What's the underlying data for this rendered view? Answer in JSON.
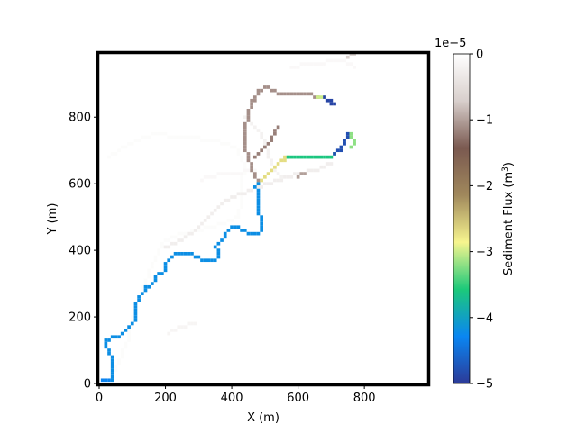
{
  "chart_data": {
    "type": "heatmap",
    "title": "",
    "xlabel": "X (m)",
    "ylabel": "Y (m)",
    "xlim": [
      0,
      990
    ],
    "ylim": [
      0,
      990
    ],
    "xticks": [
      0,
      200,
      400,
      600,
      800
    ],
    "yticks": [
      0,
      200,
      400,
      600,
      800
    ],
    "grid": false,
    "colorbar": {
      "label": "Sediment Flux ($m^3$)",
      "label_text": "Sediment Flux (m",
      "label_sup": "3",
      "label_close": ")",
      "scale_text": "1e−5",
      "vmin": -5,
      "vmax": 0,
      "ticks": [
        0,
        -1,
        -2,
        -3,
        -4,
        -5
      ],
      "tick_labels": [
        "0",
        "−1",
        "−2",
        "−3",
        "−4",
        "−5"
      ],
      "colormap": "terrain_r",
      "stops": [
        "#2c3a98",
        "#0a86f2",
        "#1cc97a",
        "#f7f58e",
        "#a0885c",
        "#7a5950",
        "#d8cfcc",
        "#ffffff"
      ]
    },
    "series": [
      {
        "value": -0.05,
        "points": [
          [
            30,
            680
          ],
          [
            60,
            700
          ],
          [
            100,
            720
          ],
          [
            140,
            740
          ],
          [
            170,
            750
          ],
          [
            200,
            745
          ],
          [
            250,
            740
          ],
          [
            300,
            735
          ],
          [
            340,
            730
          ],
          [
            380,
            720
          ],
          [
            420,
            700
          ],
          [
            440,
            650
          ],
          [
            430,
            600
          ],
          [
            430,
            550
          ],
          [
            420,
            500
          ],
          [
            380,
            480
          ],
          [
            340,
            470
          ],
          [
            300,
            460
          ],
          [
            260,
            450
          ],
          [
            220,
            440
          ],
          [
            190,
            420
          ],
          [
            170,
            380
          ],
          [
            150,
            330
          ],
          [
            130,
            280
          ],
          [
            110,
            230
          ],
          [
            100,
            190
          ],
          [
            90,
            140
          ],
          [
            70,
            90
          ],
          [
            50,
            50
          ],
          [
            40,
            20
          ]
        ]
      },
      {
        "value": -0.1,
        "points": [
          [
            580,
            950
          ],
          [
            630,
            960
          ],
          [
            690,
            965
          ],
          [
            740,
            965
          ],
          [
            760,
            960
          ],
          [
            770,
            950
          ]
        ]
      },
      {
        "value": -0.2,
        "points": [
          [
            550,
            620
          ],
          [
            530,
            640
          ],
          [
            520,
            660
          ],
          [
            510,
            690
          ],
          [
            500,
            720
          ],
          [
            490,
            740
          ],
          [
            480,
            760
          ],
          [
            460,
            780
          ],
          [
            440,
            800
          ]
        ]
      },
      {
        "value": -0.25,
        "points": [
          [
            200,
            410
          ],
          [
            230,
            420
          ],
          [
            260,
            440
          ],
          [
            290,
            460
          ],
          [
            310,
            480
          ],
          [
            330,
            500
          ],
          [
            350,
            520
          ],
          [
            370,
            540
          ],
          [
            400,
            560
          ],
          [
            430,
            570
          ],
          [
            460,
            580
          ],
          [
            480,
            590
          ],
          [
            510,
            600
          ],
          [
            540,
            610
          ],
          [
            570,
            620
          ],
          [
            610,
            630
          ],
          [
            650,
            640
          ],
          [
            680,
            650
          ],
          [
            700,
            660
          ]
        ]
      },
      {
        "value": -0.1,
        "points": [
          [
            310,
            610
          ],
          [
            330,
            620
          ],
          [
            360,
            625
          ],
          [
            400,
            630
          ],
          [
            440,
            635
          ],
          [
            470,
            638
          ]
        ]
      },
      {
        "value": -0.15,
        "points": [
          [
            210,
            150
          ],
          [
            230,
            160
          ],
          [
            250,
            170
          ],
          [
            270,
            175
          ],
          [
            290,
            180
          ]
        ]
      },
      {
        "value": -0.7,
        "points": [
          [
            750,
            980
          ],
          [
            760,
            985
          ],
          [
            770,
            990
          ]
        ]
      },
      {
        "value": -1.0,
        "points": [
          [
            600,
            620
          ],
          [
            610,
            625
          ],
          [
            620,
            630
          ]
        ]
      },
      {
        "value": -1.1,
        "points": [
          [
            480,
            600
          ],
          [
            470,
            615
          ],
          [
            465,
            630
          ],
          [
            460,
            650
          ],
          [
            450,
            670
          ],
          [
            445,
            690
          ],
          [
            440,
            710
          ],
          [
            440,
            730
          ],
          [
            440,
            750
          ],
          [
            440,
            770
          ],
          [
            445,
            790
          ],
          [
            450,
            810
          ],
          [
            455,
            830
          ],
          [
            460,
            845
          ],
          [
            470,
            860
          ],
          [
            480,
            875
          ],
          [
            490,
            880
          ],
          [
            500,
            885
          ],
          [
            510,
            885
          ],
          [
            520,
            880
          ],
          [
            530,
            875
          ],
          [
            540,
            870
          ],
          [
            560,
            865
          ],
          [
            580,
            865
          ],
          [
            600,
            865
          ],
          [
            620,
            865
          ],
          [
            640,
            865
          ],
          [
            660,
            864
          ]
        ]
      },
      {
        "value": -1.2,
        "points": [
          [
            470,
            680
          ],
          [
            490,
            700
          ],
          [
            510,
            720
          ],
          [
            520,
            740
          ],
          [
            530,
            760
          ],
          [
            540,
            770
          ]
        ]
      },
      {
        "value": -2.7,
        "points": [
          [
            480,
            600
          ],
          [
            495,
            615
          ],
          [
            510,
            630
          ],
          [
            525,
            645
          ],
          [
            540,
            660
          ],
          [
            555,
            672
          ],
          [
            570,
            680
          ]
        ]
      },
      {
        "value": -3.0,
        "points": [
          [
            660,
            864
          ],
          [
            670,
            860
          ],
          [
            680,
            856
          ]
        ]
      },
      {
        "value": -3.6,
        "points": [
          [
            570,
            680
          ],
          [
            590,
            680
          ],
          [
            610,
            680
          ],
          [
            630,
            680
          ],
          [
            650,
            680
          ],
          [
            670,
            680
          ],
          [
            690,
            680
          ],
          [
            700,
            680
          ],
          [
            710,
            685
          ]
        ]
      },
      {
        "value": -4.9,
        "points": [
          [
            680,
            856
          ],
          [
            690,
            850
          ],
          [
            700,
            845
          ],
          [
            705,
            840
          ],
          [
            700,
            835
          ]
        ]
      },
      {
        "value": -4.8,
        "points": [
          [
            710,
            685
          ],
          [
            720,
            695
          ],
          [
            730,
            710
          ],
          [
            740,
            725
          ],
          [
            745,
            740
          ],
          [
            750,
            750
          ]
        ]
      },
      {
        "value": -3.2,
        "points": [
          [
            755,
            745
          ],
          [
            760,
            735
          ],
          [
            765,
            725
          ],
          [
            770,
            715
          ],
          [
            760,
            705
          ]
        ]
      },
      {
        "value": -4.2,
        "points": [
          [
            40,
            10
          ],
          [
            40,
            40
          ],
          [
            40,
            70
          ],
          [
            30,
            90
          ],
          [
            20,
            110
          ],
          [
            20,
            130
          ],
          [
            40,
            135
          ],
          [
            60,
            140
          ],
          [
            80,
            160
          ],
          [
            100,
            180
          ],
          [
            110,
            200
          ],
          [
            110,
            220
          ],
          [
            110,
            240
          ],
          [
            120,
            260
          ],
          [
            130,
            270
          ],
          [
            140,
            285
          ],
          [
            160,
            300
          ],
          [
            170,
            315
          ],
          [
            180,
            325
          ],
          [
            190,
            330
          ],
          [
            200,
            340
          ],
          [
            200,
            360
          ],
          [
            210,
            370
          ],
          [
            220,
            380
          ],
          [
            240,
            390
          ],
          [
            260,
            390
          ],
          [
            280,
            385
          ],
          [
            300,
            375
          ],
          [
            320,
            370
          ],
          [
            340,
            365
          ],
          [
            350,
            370
          ],
          [
            360,
            380
          ],
          [
            360,
            400
          ],
          [
            350,
            410
          ],
          [
            360,
            420
          ],
          [
            370,
            430
          ],
          [
            380,
            450
          ],
          [
            390,
            460
          ],
          [
            400,
            470
          ],
          [
            420,
            465
          ],
          [
            440,
            455
          ],
          [
            460,
            450
          ],
          [
            480,
            450
          ],
          [
            490,
            470
          ],
          [
            490,
            490
          ],
          [
            480,
            505
          ],
          [
            480,
            520
          ],
          [
            480,
            540
          ],
          [
            480,
            560
          ],
          [
            480,
            580
          ],
          [
            470,
            590
          ],
          [
            480,
            600
          ]
        ]
      },
      {
        "value": -4.3,
        "points": [
          [
            10,
            10
          ],
          [
            25,
            10
          ]
        ]
      }
    ]
  }
}
